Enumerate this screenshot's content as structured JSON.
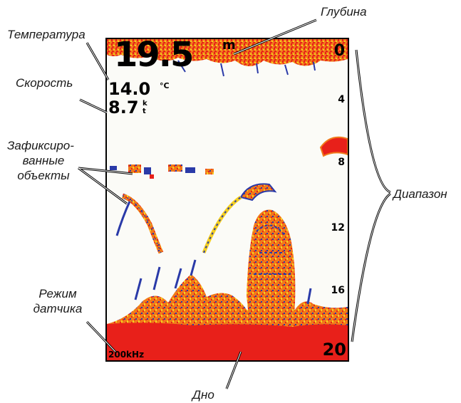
{
  "labels": {
    "temperature": "Температура",
    "depth": "Глубина",
    "speed": "Скорость",
    "suspended_targets_line1": "Зафиксиро-",
    "suspended_targets_line2": "ванные",
    "suspended_targets_line3": "объекты",
    "range": "Диапазон",
    "transducer_mode_line1": "Режим",
    "transducer_mode_line2": "датчика",
    "bottom": "Дно"
  },
  "screen": {
    "depth_value": "19.5",
    "depth_unit": "m",
    "temperature_value": "14.0",
    "temperature_unit": "°C",
    "speed_value": "8.7",
    "speed_unit_top": "k",
    "speed_unit_bottom": "t",
    "frequency": "200kHz",
    "range_top": "0",
    "range_bottom": "20",
    "scale_ticks": [
      "4",
      "8",
      "12",
      "16"
    ],
    "colors": {
      "bottom_red": "#e8201a",
      "return_orange": "#f07a1a",
      "return_yellow": "#f5d020",
      "return_blue": "#2a3aa8",
      "background": "#fbfbf7"
    }
  }
}
